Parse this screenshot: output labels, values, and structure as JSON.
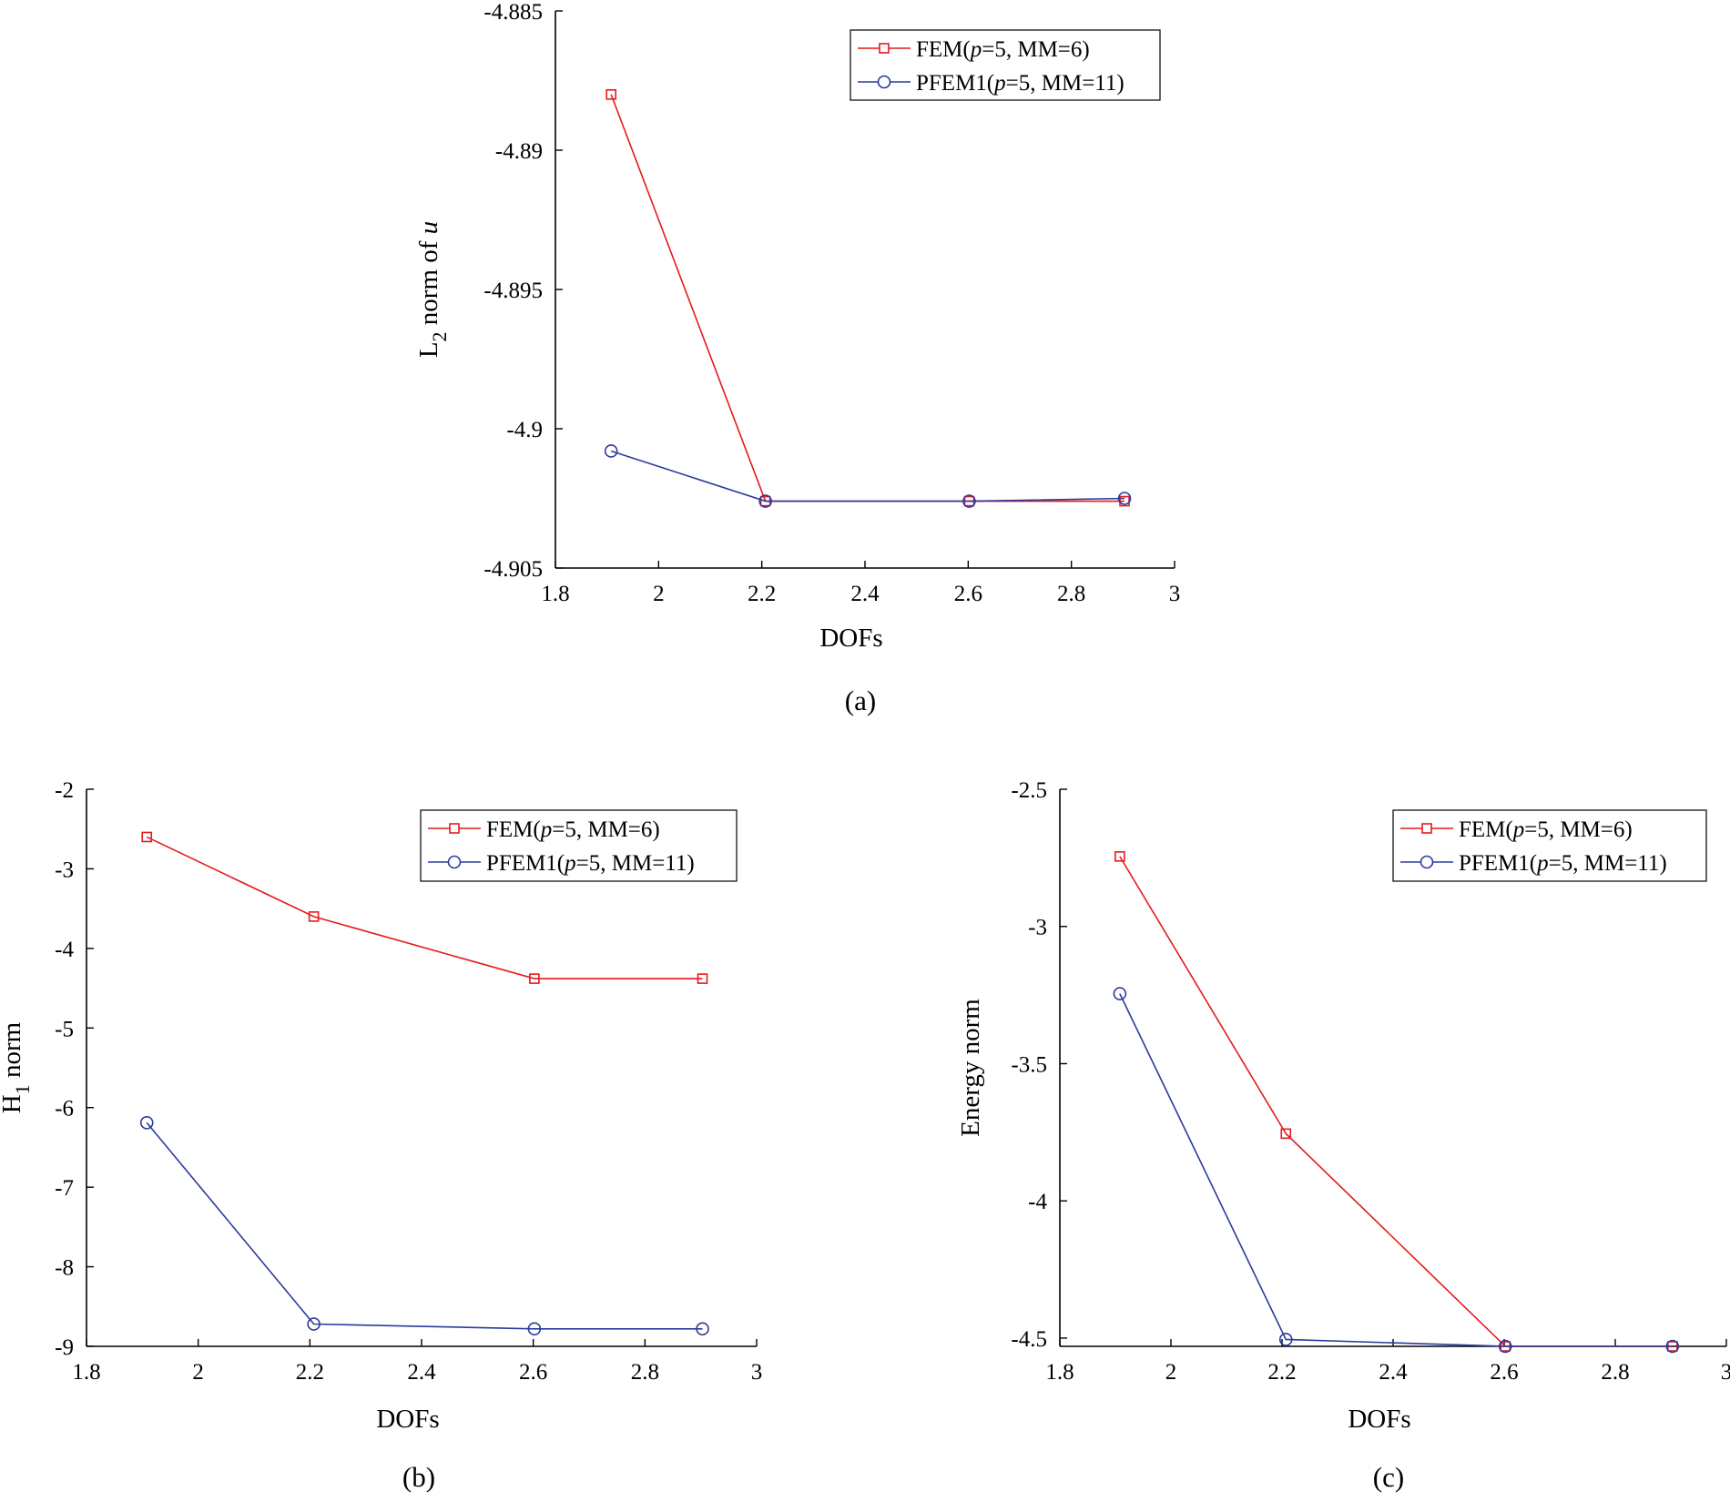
{
  "colors": {
    "fem": "#e41a1c",
    "pfem": "#2b3b9b",
    "axis": "#000000"
  },
  "legend_entries": {
    "fem": {
      "pre": "FEM(",
      "ital": "p",
      "post": "=5, MM=6)"
    },
    "pfem": {
      "pre": "PFEM1(",
      "ital": "p",
      "post": "=5, MM=11)"
    }
  },
  "chart_data": [
    {
      "id": "a",
      "type": "line",
      "caption": "(a)",
      "xlabel": "DOFs",
      "ylabel": {
        "main": "L",
        "sub": "2",
        "rest": " norm of ",
        "ital": "u"
      },
      "xlim": [
        1.8,
        3.0
      ],
      "ylim": [
        -4.905,
        -4.885
      ],
      "xticks": [
        1.8,
        2,
        2.2,
        2.4,
        2.6,
        2.8,
        3
      ],
      "xtick_labels": [
        "1.8",
        "2",
        "2.2",
        "2.4",
        "2.6",
        "2.8",
        "3"
      ],
      "yticks": [
        -4.885,
        -4.89,
        -4.895,
        -4.9,
        -4.905
      ],
      "ytick_labels": [
        "-4.885",
        "-4.89",
        "-4.895",
        "-4.9",
        "-4.905"
      ],
      "legend": "top-right",
      "series": [
        {
          "key": "fem",
          "name": "FEM(p=5, MM=6)",
          "marker": "square",
          "x": [
            1.908,
            2.207,
            2.602,
            2.903
          ],
          "y": [
            -4.888,
            -4.9026,
            -4.9026,
            -4.9026
          ]
        },
        {
          "key": "pfem",
          "name": "PFEM1(p=5, MM=11)",
          "marker": "circle",
          "x": [
            1.908,
            2.207,
            2.602,
            2.903
          ],
          "y": [
            -4.9008,
            -4.9026,
            -4.9026,
            -4.9025
          ]
        }
      ]
    },
    {
      "id": "b",
      "type": "line",
      "caption": "(b)",
      "xlabel": "DOFs",
      "ylabel": {
        "main": "H",
        "sub": "1",
        "rest": " norm",
        "ital": ""
      },
      "xlim": [
        1.8,
        3.0
      ],
      "ylim": [
        -9,
        -2
      ],
      "xticks": [
        1.8,
        2,
        2.2,
        2.4,
        2.6,
        2.8,
        3
      ],
      "xtick_labels": [
        "1.8",
        "2",
        "2.2",
        "2.4",
        "2.6",
        "2.8",
        "3"
      ],
      "yticks": [
        -2,
        -3,
        -4,
        -5,
        -6,
        -7,
        -8,
        -9
      ],
      "ytick_labels": [
        "-2",
        "-3",
        "-4",
        "-5",
        "-6",
        "-7",
        "-8",
        "-9"
      ],
      "legend": "top-right",
      "series": [
        {
          "key": "fem",
          "name": "FEM(p=5, MM=6)",
          "marker": "square",
          "x": [
            1.908,
            2.207,
            2.602,
            2.903
          ],
          "y": [
            -2.6,
            -3.6,
            -4.38,
            -4.38
          ]
        },
        {
          "key": "pfem",
          "name": "PFEM1(p=5, MM=11)",
          "marker": "circle",
          "x": [
            1.908,
            2.207,
            2.602,
            2.903
          ],
          "y": [
            -6.19,
            -8.72,
            -8.78,
            -8.78
          ]
        }
      ]
    },
    {
      "id": "c",
      "type": "line",
      "caption": "(c)",
      "xlabel": "DOFs",
      "ylabel": {
        "main": "Energy norm",
        "sub": "",
        "rest": "",
        "ital": ""
      },
      "xlim": [
        1.8,
        3.0
      ],
      "ylim": [
        -4.53,
        -2.5
      ],
      "xticks": [
        1.8,
        2,
        2.2,
        2.4,
        2.6,
        2.8,
        3
      ],
      "xtick_labels": [
        "1.8",
        "2",
        "2.2",
        "2.4",
        "2.6",
        "2.8",
        "3"
      ],
      "yticks": [
        -2.5,
        -3,
        -3.5,
        -4,
        -4.5
      ],
      "ytick_labels": [
        "-2.5",
        "-3",
        "-3.5",
        "-4",
        "-4.5"
      ],
      "legend": "top-right",
      "series": [
        {
          "key": "fem",
          "name": "FEM(p=5, MM=6)",
          "marker": "square",
          "x": [
            1.908,
            2.207,
            2.602,
            2.903
          ],
          "y": [
            -2.745,
            -3.755,
            -4.53,
            -4.53
          ]
        },
        {
          "key": "pfem",
          "name": "PFEM1(p=5, MM=11)",
          "marker": "circle",
          "x": [
            1.908,
            2.207,
            2.602,
            2.903
          ],
          "y": [
            -3.245,
            -4.505,
            -4.53,
            -4.53
          ]
        }
      ]
    }
  ]
}
